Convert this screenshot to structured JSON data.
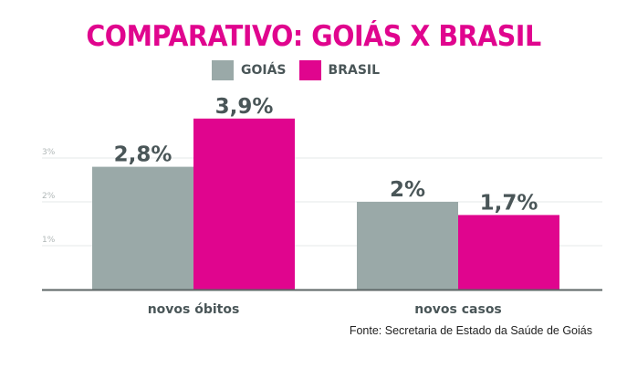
{
  "chart_data": {
    "type": "bar",
    "title": "COMPARATIVO: GOIÁS X BRASIL",
    "categories": [
      "novos óbitos",
      "novos casos"
    ],
    "series": [
      {
        "name": "GOIÁS",
        "color": "#9aa9a8",
        "values": [
          2.8,
          2.0
        ],
        "labels": [
          "2,8%",
          "2%"
        ]
      },
      {
        "name": "BRASIL",
        "color": "#e0058e",
        "values": [
          3.9,
          1.7
        ],
        "labels": [
          "3,9%",
          "1,7%"
        ]
      }
    ],
    "yticks": [
      {
        "value": 1,
        "label": "1%"
      },
      {
        "value": 2,
        "label": "2%"
      },
      {
        "value": 3,
        "label": "3%"
      }
    ],
    "ylim": [
      0,
      4
    ],
    "grid": true,
    "legend": "top-center",
    "source": "Fonte: Secretaria de Estado da Saúde de Goiás"
  }
}
